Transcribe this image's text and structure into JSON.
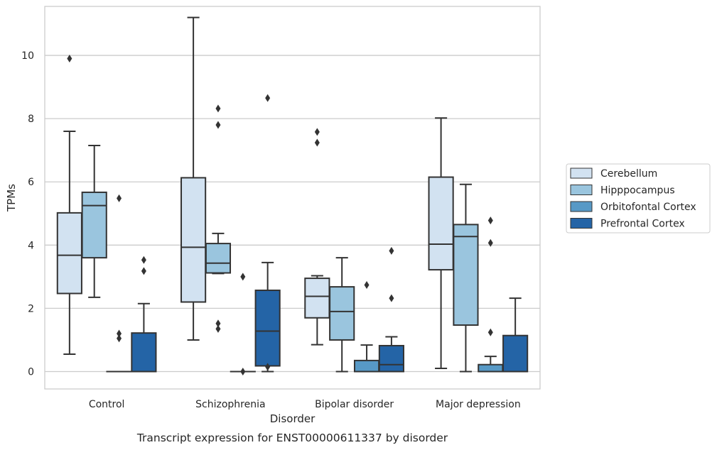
{
  "chart_data": {
    "type": "boxplot",
    "title": "",
    "caption": "Transcript expression for ENST00000611337 by disorder",
    "xlabel": "Disorder",
    "ylabel": "TPMs",
    "ylim": [
      -0.55,
      11.55
    ],
    "yticks": [
      0,
      2,
      4,
      6,
      8,
      10
    ],
    "grid": "horizontal",
    "legend_position": "right",
    "categories": [
      "Control",
      "Schizophrenia",
      "Bipolar disorder",
      "Major depression"
    ],
    "series": [
      {
        "name": "Cerebellum",
        "color": "#d2e2f1",
        "boxes": [
          {
            "whislo": 0.55,
            "q1": 2.47,
            "med": 3.68,
            "q3": 5.02,
            "whishi": 7.6,
            "fliers": [
              9.9
            ]
          },
          {
            "whislo": 1.0,
            "q1": 2.2,
            "med": 3.93,
            "q3": 6.13,
            "whishi": 11.2,
            "fliers": []
          },
          {
            "whislo": 0.85,
            "q1": 1.7,
            "med": 2.38,
            "q3": 2.95,
            "whishi": 3.03,
            "fliers": [
              7.58,
              7.24
            ]
          },
          {
            "whislo": 0.1,
            "q1": 3.22,
            "med": 4.03,
            "q3": 6.15,
            "whishi": 8.02,
            "fliers": []
          }
        ]
      },
      {
        "name": "Hipppocampus",
        "color": "#9ac5de",
        "boxes": [
          {
            "whislo": 2.35,
            "q1": 3.6,
            "med": 5.25,
            "q3": 5.67,
            "whishi": 7.15,
            "fliers": []
          },
          {
            "whislo": 3.1,
            "q1": 3.12,
            "med": 3.43,
            "q3": 4.05,
            "whishi": 4.37,
            "fliers": [
              8.32,
              7.8,
              1.52,
              1.35
            ]
          },
          {
            "whislo": 0.0,
            "q1": 1.0,
            "med": 1.9,
            "q3": 2.68,
            "whishi": 3.6,
            "fliers": []
          },
          {
            "whislo": 0.0,
            "q1": 1.47,
            "med": 4.27,
            "q3": 4.65,
            "whishi": 5.92,
            "fliers": []
          }
        ]
      },
      {
        "name": "Orbitofontal Cortex",
        "color": "#5799c6",
        "boxes": [
          {
            "whislo": 0.0,
            "q1": 0.0,
            "med": 0.0,
            "q3": 0.0,
            "whishi": 0.0,
            "fliers": [
              5.48,
              1.2,
              1.05
            ]
          },
          {
            "whislo": 0.0,
            "q1": 0.0,
            "med": 0.0,
            "q3": 0.0,
            "whishi": 0.0,
            "fliers": [
              3.0,
              0.0
            ]
          },
          {
            "whislo": 0.0,
            "q1": 0.0,
            "med": 0.0,
            "q3": 0.35,
            "whishi": 0.84,
            "fliers": [
              2.74
            ]
          },
          {
            "whislo": 0.0,
            "q1": 0.0,
            "med": 0.0,
            "q3": 0.22,
            "whishi": 0.48,
            "fliers": [
              4.78,
              4.07,
              1.24
            ]
          }
        ]
      },
      {
        "name": "Prefrontal Cortex",
        "color": "#2464a6",
        "boxes": [
          {
            "whislo": 0.0,
            "q1": 0.0,
            "med": 0.0,
            "q3": 1.22,
            "whishi": 2.15,
            "fliers": [
              3.53,
              3.18
            ]
          },
          {
            "whislo": 0.0,
            "q1": 0.18,
            "med": 1.28,
            "q3": 2.57,
            "whishi": 3.45,
            "fliers": [
              8.65,
              0.15
            ]
          },
          {
            "whislo": 0.0,
            "q1": 0.0,
            "med": 0.22,
            "q3": 0.82,
            "whishi": 1.1,
            "fliers": [
              3.82,
              2.32
            ]
          },
          {
            "whislo": 0.0,
            "q1": 0.0,
            "med": 0.0,
            "q3": 1.14,
            "whishi": 2.32,
            "fliers": []
          }
        ]
      }
    ]
  },
  "colors": {
    "grid": "#cccccc",
    "frame": "#cccccc",
    "line": "#333333",
    "background": "#ffffff"
  }
}
